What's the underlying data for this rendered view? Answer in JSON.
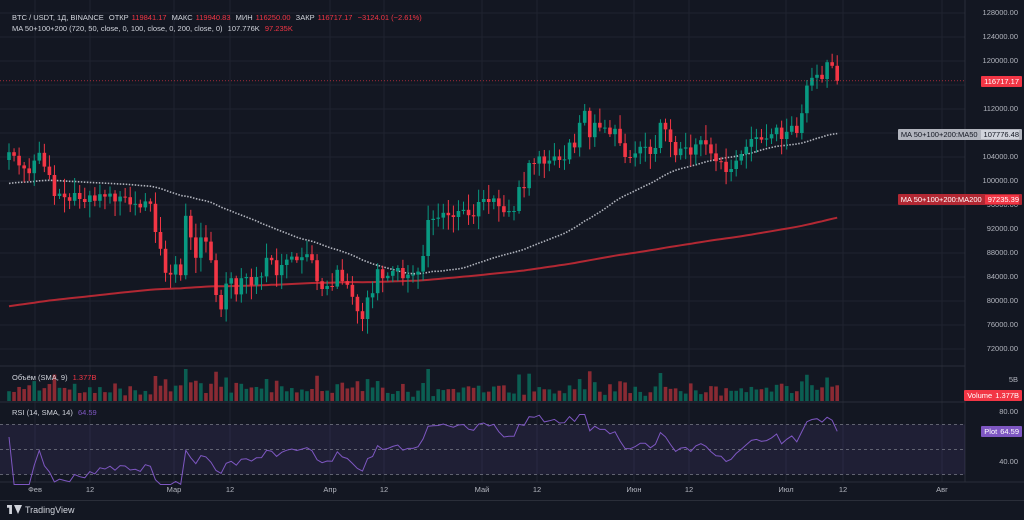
{
  "header": {
    "symbol": "BTC / USDT, 1Д, BINANCE",
    "open_label": "ОТКР",
    "open": "119841.17",
    "high_label": "МАКС",
    "high": "119940.83",
    "low_label": "МИН",
    "low": "116250.00",
    "close_label": "ЗАКР",
    "close": "116717.17",
    "change": "−3124.01 (−2.61%)"
  },
  "ma_legend": {
    "name": "MA 50+100+200 (720, 50, close, 0, 100, close, 0, 200, close, 0)",
    "v1": "107.776K",
    "v2": "97.235K"
  },
  "volume_legend": {
    "name": "Объём (SMA, 9)",
    "value": "1.377B"
  },
  "rsi_legend": {
    "name": "RSI (14, SMA, 14)",
    "value": "64.59"
  },
  "price_axis": [
    "128000.00",
    "124000.00",
    "120000.00",
    "116000.00",
    "112000.00",
    "108000.00",
    "104000.00",
    "100000.00",
    "96000.00",
    "92000.00",
    "88000.00",
    "84000.00",
    "80000.00",
    "76000.00",
    "72000.00"
  ],
  "price_tag": "116717.17",
  "ma50_tag": {
    "label": "MA 50+100+200:MA50",
    "value": "107776.48"
  },
  "ma200_tag": {
    "label": "MA 50+100+200:MA200",
    "value": "97235.39"
  },
  "volume_axis": "5B",
  "volume_tag": {
    "label": "Volume",
    "value": "1.377B"
  },
  "rsi_axis": [
    "80.00",
    "60.00",
    "40.00"
  ],
  "rsi_tag": {
    "label": "Plot",
    "value": "64.59"
  },
  "time_axis": [
    "Фев",
    "12",
    "Мар",
    "12",
    "Апр",
    "12",
    "Май",
    "12",
    "Июн",
    "12",
    "Июл",
    "12",
    "Авг"
  ],
  "brand": "TradingView",
  "colors": {
    "up": "#089981",
    "down": "#f23645",
    "ma50": "#b2b5be",
    "ma200": "#b22833",
    "rsi": "#7e57c2",
    "bg": "#131722"
  },
  "chart_data": {
    "type": "candlestick",
    "x_start": "2025-01-24",
    "x_interval": "1 day",
    "ylim": [
      70000,
      130000
    ],
    "series": [
      {
        "name": "BTC / USDT",
        "close": [
          104800,
          104200,
          102600,
          102100,
          101300,
          103400,
          104700,
          102400,
          101000,
          97500,
          97900,
          97300,
          96700,
          98000,
          97000,
          96500,
          97600,
          96700,
          97800,
          97400,
          97900,
          96600,
          97400,
          97300,
          96100,
          96200,
          95600,
          96600,
          96200,
          91500,
          88700,
          84700,
          84400,
          86100,
          84300,
          94200,
          90600,
          87200,
          90600,
          89900,
          86800,
          81000,
          78600,
          82900,
          83800,
          81100,
          83800,
          84000,
          82600,
          84000,
          84100,
          87200,
          86800,
          84300,
          86000,
          86900,
          87400,
          86800,
          87300,
          87800,
          86800,
          83300,
          82000,
          82500,
          82400,
          85200,
          83300,
          82700,
          80700,
          78300,
          77000,
          80600,
          81300,
          85300,
          83800,
          84200,
          85000,
          85500,
          83800,
          84400,
          84400,
          84900,
          87500,
          93500,
          93700,
          93900,
          94700,
          94300,
          94000,
          95000,
          95200,
          94300,
          94100,
          96500,
          97000,
          96500,
          97100,
          95800,
          94800,
          95000,
          95000,
          99000,
          98800,
          103000,
          102900,
          104100,
          102900,
          103400,
          104100,
          103500,
          103600,
          106400,
          105600,
          109700,
          111700,
          107300,
          109700,
          108900,
          108900,
          107800,
          108700,
          106300,
          104000,
          103900,
          104600,
          105700,
          105700,
          104500,
          105500,
          109700,
          108600,
          106500,
          104300,
          105400,
          105600,
          104400,
          106100,
          106800,
          106100,
          104600,
          103300,
          103200,
          101500,
          102000,
          103400,
          104500,
          105700,
          107000,
          107300,
          106900,
          107100,
          107800,
          108900,
          107000,
          108200,
          109200,
          108000,
          111300,
          115900,
          117200,
          117700,
          117000,
          119800,
          119200,
          116700
        ]
      }
    ]
  }
}
